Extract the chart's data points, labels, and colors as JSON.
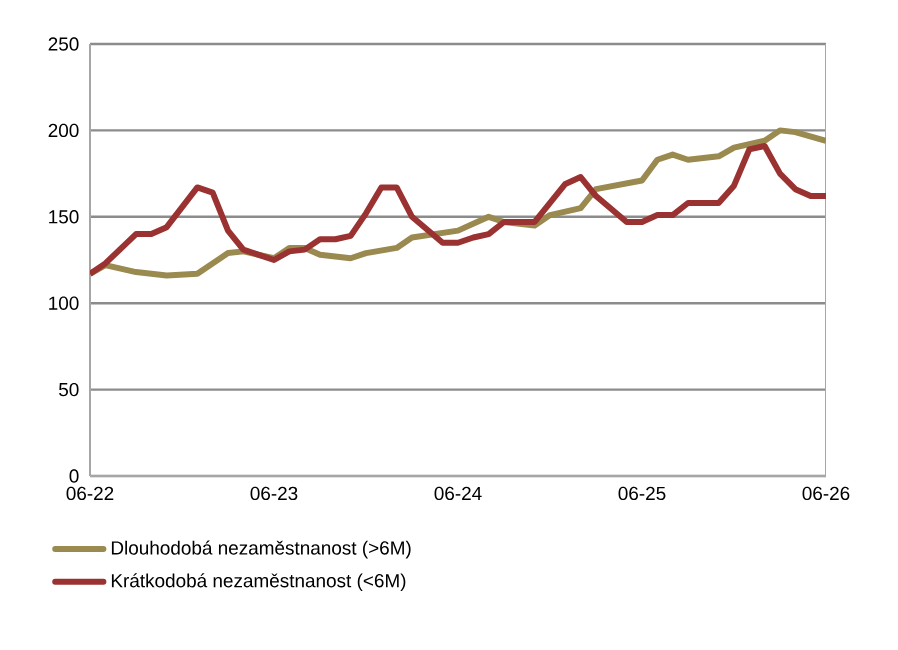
{
  "chart_data": {
    "type": "line",
    "xlim": [
      "2022-06",
      "2026-06"
    ],
    "xticks": [
      {
        "value": "2022-06",
        "label": "06-22"
      },
      {
        "value": "2023-06",
        "label": "06-23"
      },
      {
        "value": "2024-06",
        "label": "06-24"
      },
      {
        "value": "2025-06",
        "label": "06-25"
      },
      {
        "value": "2026-06",
        "label": "06-26"
      }
    ],
    "ylim": [
      0,
      250
    ],
    "yticks": [
      0,
      50,
      100,
      150,
      200,
      250
    ],
    "grid": "y",
    "legend": "bottom left",
    "line_style": "solid",
    "marker": "none",
    "series": [
      {
        "name": "Dlouhodobá nezaměstnanost (>6M)",
        "color": "#9a8a50",
        "x": [
          "2022-06",
          "2022-07",
          "2022-09",
          "2022-11",
          "2023-01",
          "2023-03",
          "2023-04",
          "2023-06",
          "2023-07",
          "2023-08",
          "2023-09",
          "2023-11",
          "2023-12",
          "2024-02",
          "2024-03",
          "2024-06",
          "2024-08",
          "2024-09",
          "2024-11",
          "2024-12",
          "2025-02",
          "2025-03",
          "2025-06",
          "2025-07",
          "2025-08",
          "2025-09",
          "2025-11",
          "2025-12",
          "2026-02",
          "2026-03",
          "2026-04",
          "2026-06"
        ],
        "values": [
          117,
          122,
          118,
          116,
          117,
          129,
          130,
          126,
          132,
          132,
          128,
          126,
          129,
          132,
          138,
          142,
          150,
          147,
          145,
          151,
          155,
          166,
          171,
          183,
          186,
          183,
          185,
          190,
          194,
          200,
          199,
          194
        ]
      },
      {
        "name": "Krátkodobá nezaměstnanost (<6M)",
        "color": "#9b3232",
        "x": [
          "2022-06",
          "2022-07",
          "2022-09",
          "2022-10",
          "2022-11",
          "2023-01",
          "2023-02",
          "2023-03",
          "2023-04",
          "2023-06",
          "2023-07",
          "2023-08",
          "2023-09",
          "2023-10",
          "2023-11",
          "2023-12",
          "2024-01",
          "2024-02",
          "2024-03",
          "2024-05",
          "2024-06",
          "2024-07",
          "2024-08",
          "2024-09",
          "2024-11",
          "2025-01",
          "2025-02",
          "2025-03",
          "2025-05",
          "2025-06",
          "2025-07",
          "2025-08",
          "2025-09",
          "2025-11",
          "2025-12",
          "2026-01",
          "2026-02",
          "2026-03",
          "2026-04",
          "2026-05",
          "2026-06"
        ],
        "values": [
          117,
          123,
          140,
          140,
          144,
          167,
          164,
          142,
          131,
          125,
          130,
          131,
          137,
          137,
          139,
          152,
          167,
          167,
          150,
          135,
          135,
          138,
          140,
          147,
          147,
          169,
          173,
          162,
          147,
          147,
          151,
          151,
          158,
          158,
          168,
          189,
          191,
          175,
          166,
          162,
          162
        ]
      }
    ]
  }
}
